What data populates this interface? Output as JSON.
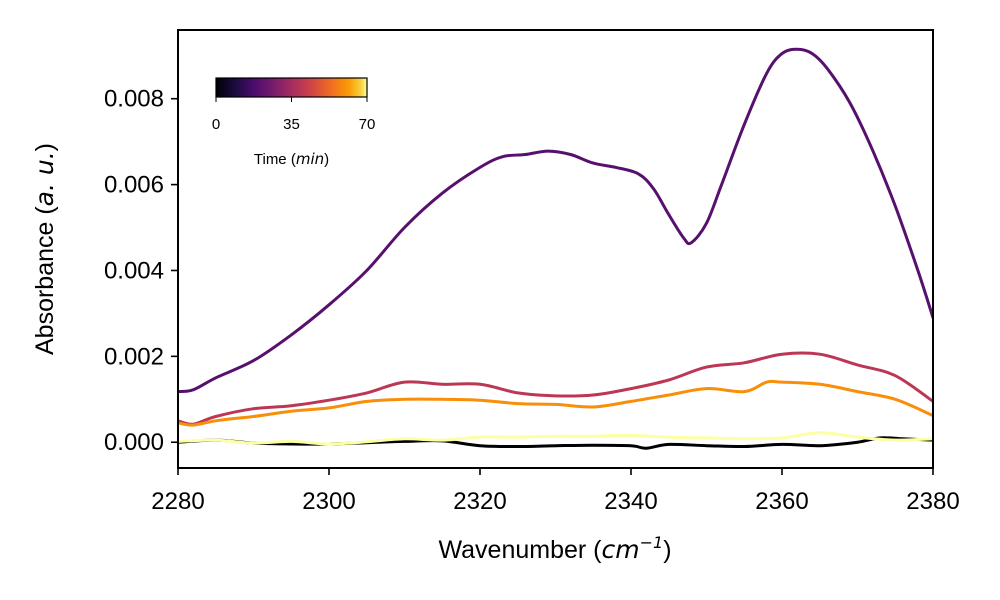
{
  "chart_data": {
    "type": "line",
    "xlabel": {
      "text": "Wavenumber (",
      "math": "cm",
      "sup": "−1",
      "close": ")"
    },
    "ylabel": {
      "text": "Absorbance (",
      "math": "a. u.",
      "close": ")"
    },
    "xlim": [
      2280,
      2380
    ],
    "ylim": [
      -0.0006,
      0.0096
    ],
    "xticks": [
      2280,
      2300,
      2320,
      2340,
      2360,
      2380
    ],
    "yticks": [
      0.0,
      0.002,
      0.004,
      0.006,
      0.008
    ],
    "ytick_labels": [
      "0.000",
      "0.002",
      "0.004",
      "0.006",
      "0.008"
    ],
    "colorbar": {
      "title": "Time (",
      "title_math": "min",
      "title_close": ")",
      "ticks": [
        "0",
        "35",
        "70"
      ],
      "range": [
        0,
        70
      ],
      "placement": "top-left",
      "colormap": "inferno"
    },
    "series": [
      {
        "color": "#000004",
        "x": [
          2280,
          2285,
          2290,
          2295,
          2300,
          2305,
          2310,
          2315,
          2320,
          2325,
          2330,
          2335,
          2340,
          2342,
          2345,
          2350,
          2355,
          2360,
          2365,
          2370,
          2373,
          2376,
          2380
        ],
        "y": [
          0.0,
          5e-05,
          -2e-05,
          -4e-05,
          -4e-05,
          -1e-05,
          2e-05,
          3e-05,
          -8e-05,
          -0.0001,
          -8e-05,
          -7e-05,
          -8e-05,
          -0.00014,
          -5e-05,
          -8e-05,
          -0.0001,
          -5e-05,
          -8e-05,
          0.0,
          0.0001,
          8e-05,
          5e-05
        ]
      },
      {
        "color": "#57106e",
        "x": [
          2280,
          2282,
          2285,
          2290,
          2295,
          2300,
          2305,
          2310,
          2315,
          2320,
          2323,
          2326,
          2329,
          2332,
          2335,
          2338,
          2341,
          2343,
          2345,
          2347,
          2348,
          2350,
          2352,
          2355,
          2358,
          2360,
          2362,
          2364,
          2366,
          2369,
          2372,
          2375,
          2378,
          2380
        ],
        "y": [
          0.00118,
          0.00122,
          0.0015,
          0.0019,
          0.0025,
          0.0032,
          0.004,
          0.005,
          0.0058,
          0.0064,
          0.00665,
          0.0067,
          0.00678,
          0.0067,
          0.0065,
          0.0064,
          0.00625,
          0.0059,
          0.0053,
          0.00475,
          0.00465,
          0.0051,
          0.006,
          0.0074,
          0.0086,
          0.00905,
          0.00915,
          0.00905,
          0.0087,
          0.0079,
          0.0068,
          0.0055,
          0.004,
          0.0029
        ]
      },
      {
        "color": "#bc3754",
        "x": [
          2280,
          2282,
          2285,
          2290,
          2295,
          2300,
          2305,
          2310,
          2315,
          2320,
          2325,
          2330,
          2335,
          2340,
          2345,
          2350,
          2355,
          2360,
          2365,
          2370,
          2375,
          2380
        ],
        "y": [
          0.0005,
          0.00042,
          0.0006,
          0.00078,
          0.00085,
          0.00098,
          0.00115,
          0.0014,
          0.00135,
          0.00135,
          0.00115,
          0.00108,
          0.0011,
          0.00125,
          0.00145,
          0.00175,
          0.00185,
          0.00205,
          0.00205,
          0.0018,
          0.00155,
          0.00095
        ]
      },
      {
        "color": "#f98e09",
        "x": [
          2280,
          2282,
          2285,
          2290,
          2295,
          2300,
          2305,
          2310,
          2315,
          2320,
          2325,
          2330,
          2335,
          2340,
          2345,
          2350,
          2355,
          2358,
          2360,
          2365,
          2370,
          2375,
          2380
        ],
        "y": [
          0.00045,
          0.0004,
          0.0005,
          0.0006,
          0.00072,
          0.0008,
          0.00095,
          0.001,
          0.001,
          0.00098,
          0.0009,
          0.00088,
          0.00082,
          0.00095,
          0.0011,
          0.00125,
          0.00118,
          0.0014,
          0.0014,
          0.00135,
          0.00118,
          0.001,
          0.00062
        ]
      },
      {
        "color": "#fcffa4",
        "x": [
          2280,
          2285,
          2290,
          2295,
          2300,
          2305,
          2310,
          2315,
          2320,
          2325,
          2330,
          2335,
          2340,
          2345,
          2350,
          2355,
          2360,
          2365,
          2370,
          2375,
          2380
        ],
        "y": [
          2e-05,
          5e-05,
          -2e-05,
          2e-05,
          -4e-05,
          1e-05,
          8e-05,
          5e-05,
          0.00012,
          0.00012,
          0.00014,
          0.00014,
          0.00016,
          0.00012,
          0.0001,
          8e-05,
          0.0001,
          0.00022,
          0.00012,
          5e-05,
          8e-05
        ]
      }
    ]
  }
}
